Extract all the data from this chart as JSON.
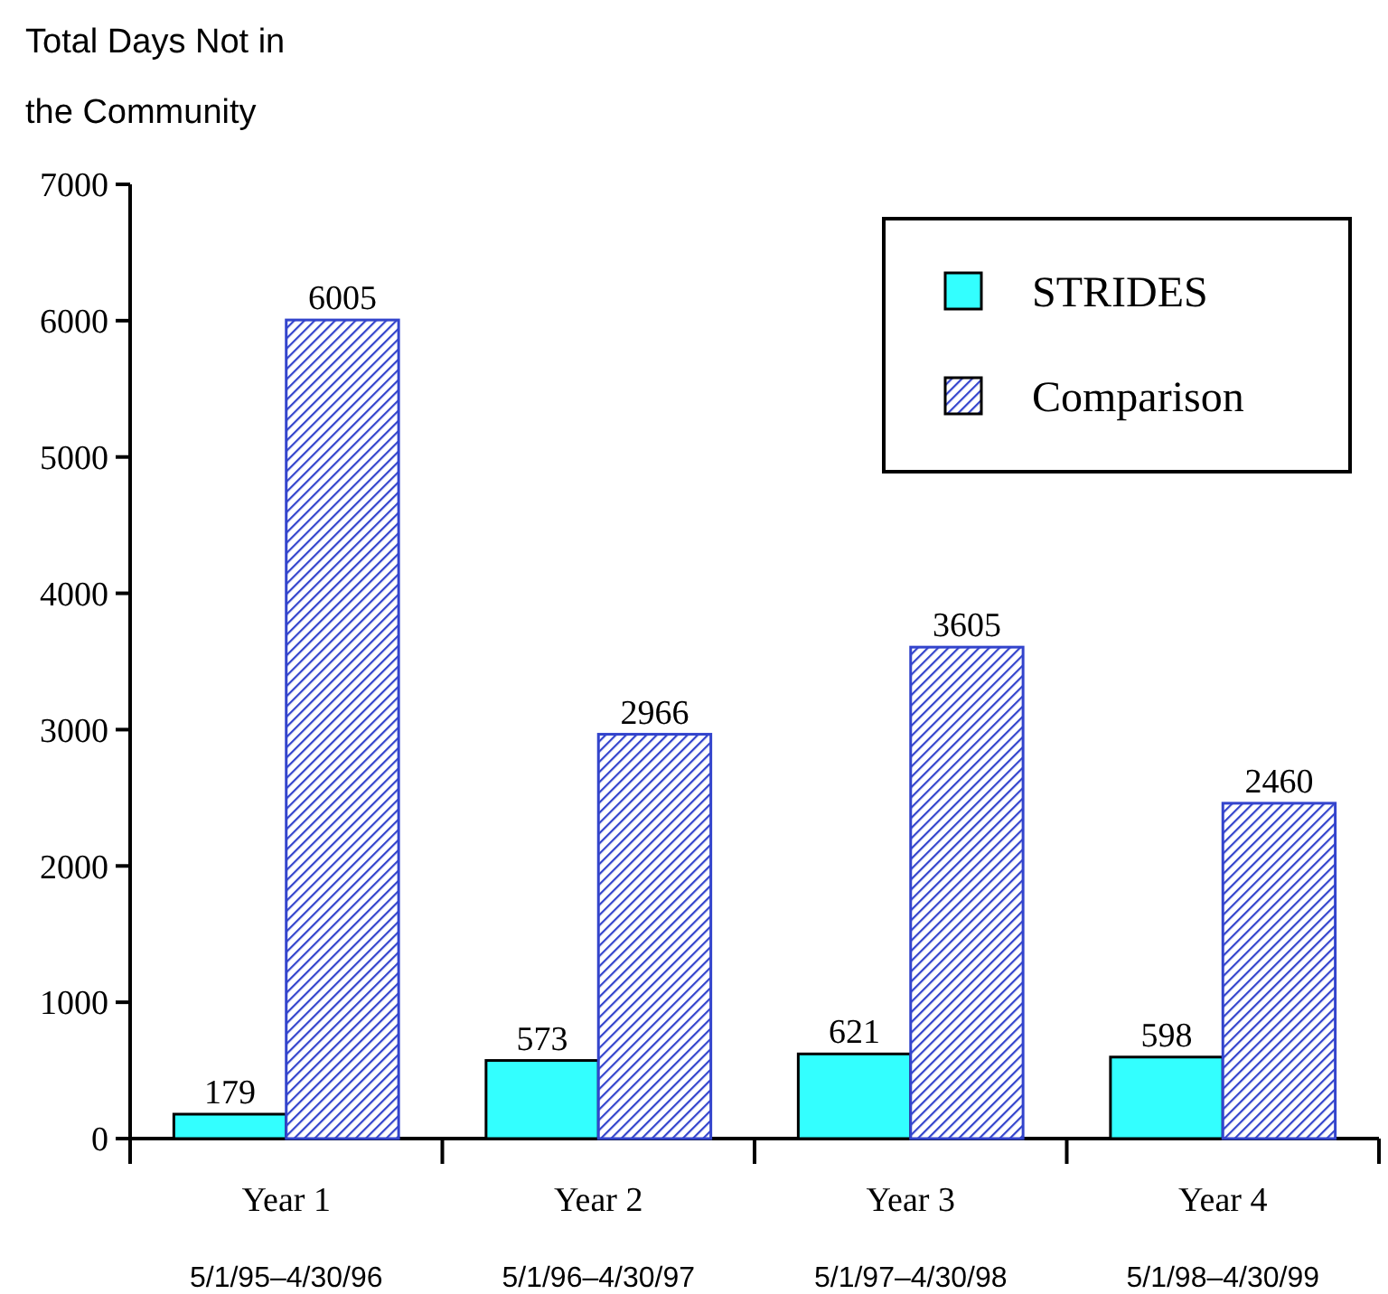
{
  "chart_data": {
    "type": "bar",
    "ylabel": "Total Days Not in the Community",
    "categories": [
      "Year 1\n5/1/95–4/30/96",
      "Year 2\n5/1/96–4/30/97",
      "Year 3\n5/1/97–4/30/98",
      "Year 4\n5/1/98–4/30/99"
    ],
    "series": [
      {
        "name": "STRIDES",
        "color": "#33ffff",
        "values": [
          179,
          573,
          621,
          598
        ]
      },
      {
        "name": "Comparison",
        "color": "#3344cc",
        "values": [
          6005,
          2966,
          3605,
          2460
        ]
      }
    ],
    "ylim": [
      0,
      7000
    ],
    "yticks": [
      0,
      1000,
      2000,
      3000,
      4000,
      5000,
      6000,
      7000
    ],
    "data_labels": true,
    "legend": "top right",
    "grid": false
  }
}
